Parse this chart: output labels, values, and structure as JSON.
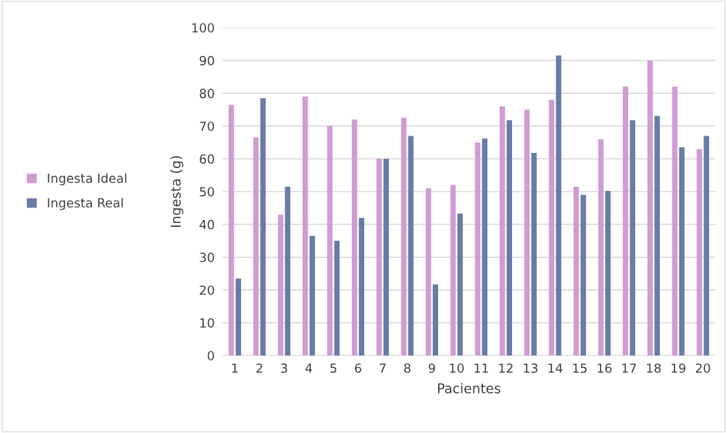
{
  "chart_data": {
    "type": "bar",
    "xlabel": "Pacientes",
    "ylabel": "Ingesta (g)",
    "categories": [
      "1",
      "2",
      "3",
      "4",
      "5",
      "6",
      "7",
      "8",
      "9",
      "10",
      "11",
      "12",
      "13",
      "14",
      "15",
      "16",
      "17",
      "18",
      "19",
      "20"
    ],
    "series": [
      {
        "name": "Ingesta Ideal",
        "color": "#d09dd3",
        "values": [
          76.5,
          66.5,
          43,
          79,
          70,
          72,
          60,
          72.5,
          51,
          52,
          65,
          76,
          75,
          78,
          51.5,
          66,
          82,
          90,
          82,
          63
        ]
      },
      {
        "name": "Ingesta Real",
        "color": "#6a7ca6",
        "values": [
          23.5,
          78.5,
          51.5,
          36.5,
          35,
          42,
          60,
          67,
          21.7,
          43.3,
          66.2,
          71.8,
          61.8,
          91.5,
          49,
          50.2,
          71.8,
          73.1,
          63.5,
          67
        ]
      }
    ],
    "ylim": [
      0,
      100
    ],
    "yticks": [
      0,
      10,
      20,
      30,
      40,
      50,
      60,
      70,
      80,
      90,
      100
    ],
    "grid": "y",
    "legend": "left"
  }
}
